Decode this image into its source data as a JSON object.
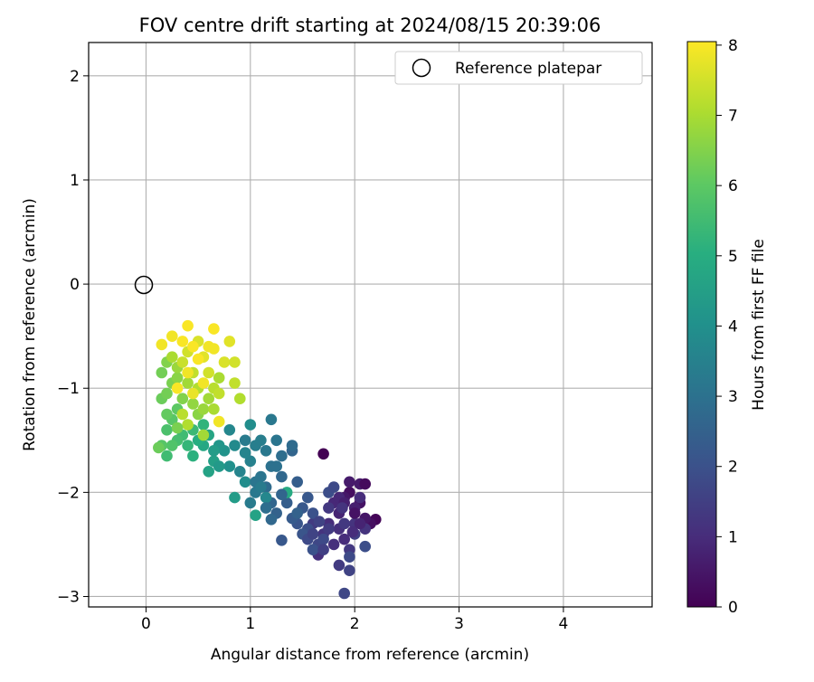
{
  "chart_data": {
    "type": "scatter",
    "title": "FOV centre drift starting at 2024/08/15 20:39:06",
    "xlabel": "Angular distance from reference (arcmin)",
    "ylabel": "Rotation from reference (arcmin)",
    "xlim": [
      -0.55,
      4.85
    ],
    "ylim": [
      -3.1,
      2.32
    ],
    "xticks": [
      "0",
      "1",
      "2",
      "3",
      "4"
    ],
    "yticks": [
      "−3",
      "−2",
      "−1",
      "0",
      "1",
      "2"
    ],
    "grid": true,
    "legend": {
      "placement": "top-right",
      "entries": [
        "Reference platepar"
      ]
    },
    "reference": {
      "name": "Reference platepar",
      "x": 0,
      "y": 0
    },
    "colorbar": {
      "label": "Hours from first FF file",
      "range": [
        0,
        8.05
      ],
      "ticks": [
        "0",
        "1",
        "2",
        "3",
        "4",
        "5",
        "6",
        "7",
        "8"
      ],
      "colormap": "viridis"
    },
    "series": [
      {
        "columns": [
          "x",
          "y",
          "hours"
        ],
        "points": [
          [
            1.7,
            -1.63,
            0.0
          ],
          [
            2.2,
            -2.26,
            0.1
          ],
          [
            2.15,
            -2.3,
            0.3
          ],
          [
            2.05,
            -2.1,
            0.4
          ],
          [
            2.1,
            -2.25,
            0.5
          ],
          [
            1.95,
            -2.0,
            0.3
          ],
          [
            1.9,
            -2.05,
            0.5
          ],
          [
            2.0,
            -2.15,
            0.7
          ],
          [
            1.85,
            -2.2,
            0.8
          ],
          [
            2.05,
            -1.92,
            0.6
          ],
          [
            1.95,
            -1.9,
            0.6
          ],
          [
            1.8,
            -2.1,
            0.9
          ],
          [
            1.75,
            -2.3,
            1.0
          ],
          [
            1.85,
            -2.35,
            1.1
          ],
          [
            1.9,
            -2.45,
            1.0
          ],
          [
            1.8,
            -2.5,
            1.1
          ],
          [
            1.7,
            -2.4,
            1.2
          ],
          [
            1.65,
            -2.6,
            1.1
          ],
          [
            2.0,
            -2.3,
            1.2
          ],
          [
            2.05,
            -2.05,
            1.0
          ],
          [
            1.95,
            -2.55,
            1.3
          ],
          [
            2.1,
            -2.35,
            1.2
          ],
          [
            1.75,
            -2.15,
            1.3
          ],
          [
            1.6,
            -2.3,
            1.4
          ],
          [
            1.9,
            -2.3,
            1.3
          ],
          [
            2.0,
            -2.4,
            1.5
          ],
          [
            1.85,
            -2.7,
            1.4
          ],
          [
            1.95,
            -2.75,
            1.6
          ],
          [
            1.9,
            -2.97,
            1.7
          ],
          [
            1.95,
            -2.62,
            1.8
          ],
          [
            2.1,
            -2.52,
            1.9
          ],
          [
            1.65,
            -2.5,
            1.7
          ],
          [
            1.7,
            -2.45,
            1.8
          ],
          [
            1.55,
            -2.35,
            1.9
          ],
          [
            1.6,
            -2.2,
            2.0
          ],
          [
            1.45,
            -2.3,
            2.1
          ],
          [
            1.55,
            -2.05,
            2.2
          ],
          [
            1.5,
            -2.4,
            2.1
          ],
          [
            1.6,
            -2.55,
            2.0
          ],
          [
            1.75,
            -2.0,
            1.9
          ],
          [
            1.8,
            -1.95,
            1.8
          ],
          [
            1.4,
            -2.25,
            2.3
          ],
          [
            1.35,
            -2.1,
            2.4
          ],
          [
            1.3,
            -2.46,
            2.2
          ],
          [
            1.45,
            -1.9,
            2.4
          ],
          [
            1.5,
            -2.15,
            2.2
          ],
          [
            1.25,
            -2.2,
            2.5
          ],
          [
            1.4,
            -1.6,
            2.6
          ],
          [
            1.2,
            -2.1,
            2.6
          ],
          [
            1.2,
            -2.26,
            2.7
          ],
          [
            1.15,
            -1.95,
            2.8
          ],
          [
            1.3,
            -1.85,
            2.7
          ],
          [
            1.4,
            -1.55,
            2.8
          ],
          [
            1.3,
            -1.65,
            2.9
          ],
          [
            1.2,
            -1.75,
            3.0
          ],
          [
            1.25,
            -1.5,
            3.1
          ],
          [
            1.1,
            -1.85,
            3.1
          ],
          [
            1.05,
            -2.0,
            3.2
          ],
          [
            1.0,
            -2.1,
            3.3
          ],
          [
            1.15,
            -1.6,
            3.2
          ],
          [
            1.05,
            -1.55,
            3.4
          ],
          [
            1.0,
            -1.7,
            3.5
          ],
          [
            0.95,
            -1.5,
            3.3
          ],
          [
            1.2,
            -1.3,
            3.2
          ],
          [
            0.9,
            -1.8,
            3.6
          ],
          [
            1.15,
            -2.05,
            3.7
          ],
          [
            0.85,
            -1.55,
            3.8
          ],
          [
            1.1,
            -1.5,
            3.4
          ],
          [
            0.95,
            -1.9,
            3.9
          ],
          [
            0.8,
            -1.75,
            4.0
          ],
          [
            1.0,
            -1.35,
            3.9
          ],
          [
            0.8,
            -1.4,
            3.7
          ],
          [
            0.75,
            -1.6,
            4.1
          ],
          [
            0.7,
            -1.55,
            4.2
          ],
          [
            0.85,
            -2.05,
            4.4
          ],
          [
            0.65,
            -1.7,
            4.5
          ],
          [
            1.05,
            -2.22,
            4.6
          ],
          [
            0.6,
            -1.45,
            4.7
          ],
          [
            0.65,
            -1.6,
            4.4
          ],
          [
            0.55,
            -1.55,
            4.8
          ],
          [
            1.35,
            -2.0,
            4.9
          ],
          [
            0.5,
            -1.5,
            5.0
          ],
          [
            0.45,
            -1.65,
            5.1
          ],
          [
            0.4,
            -1.55,
            5.3
          ],
          [
            0.55,
            -1.35,
            5.2
          ],
          [
            0.45,
            -1.4,
            5.4
          ],
          [
            0.35,
            -1.45,
            5.5
          ],
          [
            0.3,
            -1.5,
            5.6
          ],
          [
            0.25,
            -1.55,
            5.8
          ],
          [
            0.2,
            -1.4,
            5.7
          ],
          [
            0.15,
            -1.55,
            5.9
          ],
          [
            0.25,
            -1.3,
            5.9
          ],
          [
            0.3,
            -1.2,
            6.0
          ],
          [
            0.2,
            -1.25,
            6.1
          ],
          [
            0.15,
            -1.1,
            6.2
          ],
          [
            0.2,
            -1.05,
            6.3
          ],
          [
            0.25,
            -0.95,
            6.4
          ],
          [
            0.15,
            -0.85,
            6.3
          ],
          [
            0.2,
            -0.75,
            6.5
          ],
          [
            0.3,
            -0.9,
            6.6
          ],
          [
            0.35,
            -1.1,
            6.5
          ],
          [
            0.3,
            -0.8,
            6.8
          ],
          [
            0.25,
            -0.7,
            7.0
          ],
          [
            0.4,
            -0.95,
            6.9
          ],
          [
            0.45,
            -1.15,
            6.7
          ],
          [
            0.5,
            -1.25,
            6.6
          ],
          [
            0.5,
            -1.0,
            7.1
          ],
          [
            0.45,
            -0.85,
            7.3
          ],
          [
            0.35,
            -0.75,
            7.4
          ],
          [
            0.4,
            -0.65,
            7.5
          ],
          [
            0.5,
            -0.55,
            7.6
          ],
          [
            0.55,
            -0.7,
            7.7
          ],
          [
            0.6,
            -0.85,
            7.5
          ],
          [
            0.65,
            -1.0,
            7.2
          ],
          [
            0.7,
            -0.9,
            7.0
          ],
          [
            0.6,
            -1.1,
            6.9
          ],
          [
            0.55,
            -1.2,
            6.8
          ],
          [
            0.65,
            -1.2,
            7.0
          ],
          [
            0.7,
            -1.05,
            7.3
          ],
          [
            0.75,
            -0.75,
            7.6
          ],
          [
            0.8,
            -0.55,
            7.7
          ],
          [
            0.85,
            -0.75,
            7.5
          ],
          [
            0.85,
            -0.95,
            7.3
          ],
          [
            0.9,
            -1.1,
            7.1
          ],
          [
            0.6,
            -0.6,
            7.9
          ],
          [
            0.65,
            -0.62,
            7.9
          ],
          [
            0.4,
            -0.4,
            8.0
          ],
          [
            0.65,
            -0.43,
            8.0
          ],
          [
            0.15,
            -0.58,
            7.9
          ],
          [
            0.25,
            -0.5,
            7.9
          ],
          [
            0.35,
            -0.55,
            8.0
          ],
          [
            0.45,
            -0.6,
            8.0
          ],
          [
            0.5,
            -0.72,
            8.0
          ],
          [
            0.4,
            -0.85,
            7.9
          ],
          [
            0.3,
            -1.0,
            8.0
          ],
          [
            0.45,
            -1.05,
            7.8
          ],
          [
            0.55,
            -0.95,
            7.9
          ],
          [
            0.7,
            -1.32,
            7.9
          ],
          [
            0.35,
            -1.25,
            7.2
          ],
          [
            0.55,
            -1.45,
            6.9
          ],
          [
            0.4,
            -1.35,
            7.1
          ],
          [
            0.3,
            -1.38,
            6.4
          ],
          [
            0.12,
            -1.57,
            6.2
          ],
          [
            0.2,
            -1.65,
            5.5
          ],
          [
            0.6,
            -1.8,
            4.6
          ],
          [
            0.7,
            -1.75,
            4.3
          ],
          [
            0.95,
            -1.62,
            3.6
          ],
          [
            1.25,
            -1.75,
            3.0
          ],
          [
            1.05,
            -1.9,
            3.1
          ],
          [
            1.1,
            -1.95,
            3.3
          ],
          [
            1.15,
            -2.15,
            2.9
          ],
          [
            1.3,
            -2.02,
            2.6
          ],
          [
            1.45,
            -2.2,
            2.5
          ],
          [
            1.55,
            -2.45,
            1.8
          ],
          [
            1.6,
            -2.4,
            1.6
          ],
          [
            1.7,
            -2.55,
            1.5
          ],
          [
            1.75,
            -2.35,
            1.4
          ],
          [
            1.85,
            -2.05,
            0.9
          ],
          [
            1.9,
            -2.1,
            0.7
          ],
          [
            2.0,
            -2.2,
            0.4
          ],
          [
            2.1,
            -1.92,
            0.2
          ],
          [
            2.05,
            -2.3,
            0.8
          ],
          [
            1.98,
            -2.38,
            1.0
          ],
          [
            1.88,
            -2.15,
            1.2
          ],
          [
            1.66,
            -2.28,
            1.6
          ]
        ]
      }
    ]
  }
}
